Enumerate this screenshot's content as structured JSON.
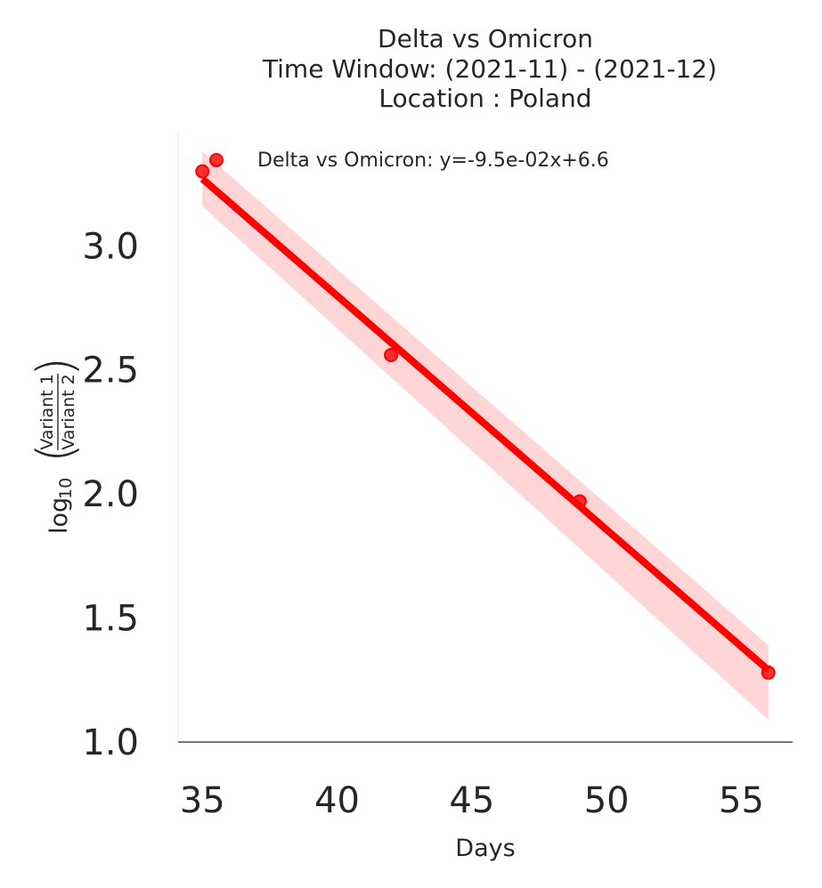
{
  "chart_data": {
    "type": "scatter",
    "title_lines": [
      "Delta vs Omicron",
      "Time Window: (2021-11) - (2021-12)",
      "Location : Poland"
    ],
    "xlabel": "Days",
    "ylabel": {
      "prefix": "log",
      "subscript": "10",
      "numerator": "Variant 1",
      "denominator": "Variant 2"
    },
    "xlim": [
      34.1,
      56.9
    ],
    "ylim": [
      1.0,
      3.46
    ],
    "xticks": [
      35,
      40,
      45,
      50,
      55
    ],
    "xtick_labels": [
      "35",
      "40",
      "45",
      "50",
      "55"
    ],
    "yticks": [
      1.0,
      1.5,
      2.0,
      2.5,
      3.0
    ],
    "ytick_labels": [
      "1.0",
      "1.5",
      "2.0",
      "2.5",
      "3.0"
    ],
    "grid": false,
    "legend": {
      "placement": "top",
      "label": "Delta vs Omicron: y=-9.5e-02x+6.6"
    },
    "series": [
      {
        "name": "Delta vs Omicron",
        "x": [
          35,
          42,
          49,
          56
        ],
        "y": [
          3.3,
          2.56,
          1.97,
          1.28
        ],
        "color": "#ff0000"
      }
    ],
    "fit": {
      "x_range": [
        35,
        56
      ],
      "y_start": 3.27,
      "y_end": 1.29,
      "ci_lower": [
        3.16,
        1.09
      ],
      "ci_upper": [
        3.38,
        1.39
      ],
      "color": "#ff0000",
      "band_color": "#ffb3b3"
    }
  }
}
